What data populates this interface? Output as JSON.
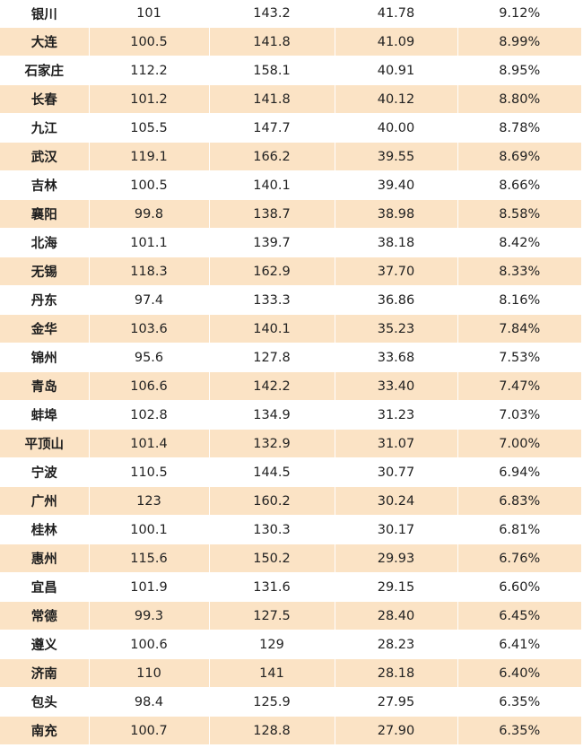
{
  "table": {
    "rows": [
      [
        "银川",
        "101",
        "143.2",
        "41.78",
        "9.12%"
      ],
      [
        "大连",
        "100.5",
        "141.8",
        "41.09",
        "8.99%"
      ],
      [
        "石家庄",
        "112.2",
        "158.1",
        "40.91",
        "8.95%"
      ],
      [
        "长春",
        "101.2",
        "141.8",
        "40.12",
        "8.80%"
      ],
      [
        "九江",
        "105.5",
        "147.7",
        "40.00",
        "8.78%"
      ],
      [
        "武汉",
        "119.1",
        "166.2",
        "39.55",
        "8.69%"
      ],
      [
        "吉林",
        "100.5",
        "140.1",
        "39.40",
        "8.66%"
      ],
      [
        "襄阳",
        "99.8",
        "138.7",
        "38.98",
        "8.58%"
      ],
      [
        "北海",
        "101.1",
        "139.7",
        "38.18",
        "8.42%"
      ],
      [
        "无锡",
        "118.3",
        "162.9",
        "37.70",
        "8.33%"
      ],
      [
        "丹东",
        "97.4",
        "133.3",
        "36.86",
        "8.16%"
      ],
      [
        "金华",
        "103.6",
        "140.1",
        "35.23",
        "7.84%"
      ],
      [
        "锦州",
        "95.6",
        "127.8",
        "33.68",
        "7.53%"
      ],
      [
        "青岛",
        "106.6",
        "142.2",
        "33.40",
        "7.47%"
      ],
      [
        "蚌埠",
        "102.8",
        "134.9",
        "31.23",
        "7.03%"
      ],
      [
        "平顶山",
        "101.4",
        "132.9",
        "31.07",
        "7.00%"
      ],
      [
        "宁波",
        "110.5",
        "144.5",
        "30.77",
        "6.94%"
      ],
      [
        "广州",
        "123",
        "160.2",
        "30.24",
        "6.83%"
      ],
      [
        "桂林",
        "100.1",
        "130.3",
        "30.17",
        "6.81%"
      ],
      [
        "惠州",
        "115.6",
        "150.2",
        "29.93",
        "6.76%"
      ],
      [
        "宜昌",
        "101.9",
        "131.6",
        "29.15",
        "6.60%"
      ],
      [
        "常德",
        "99.3",
        "127.5",
        "28.40",
        "6.45%"
      ],
      [
        "遵义",
        "100.6",
        "129",
        "28.23",
        "6.41%"
      ],
      [
        "济南",
        "110",
        "141",
        "28.18",
        "6.40%"
      ],
      [
        "包头",
        "98.4",
        "125.9",
        "27.95",
        "6.35%"
      ],
      [
        "南充",
        "100.7",
        "128.8",
        "27.90",
        "6.35%"
      ]
    ]
  },
  "colors": {
    "stripe": "#fbe3c5",
    "background": "#ffffff",
    "text": "#222222"
  }
}
